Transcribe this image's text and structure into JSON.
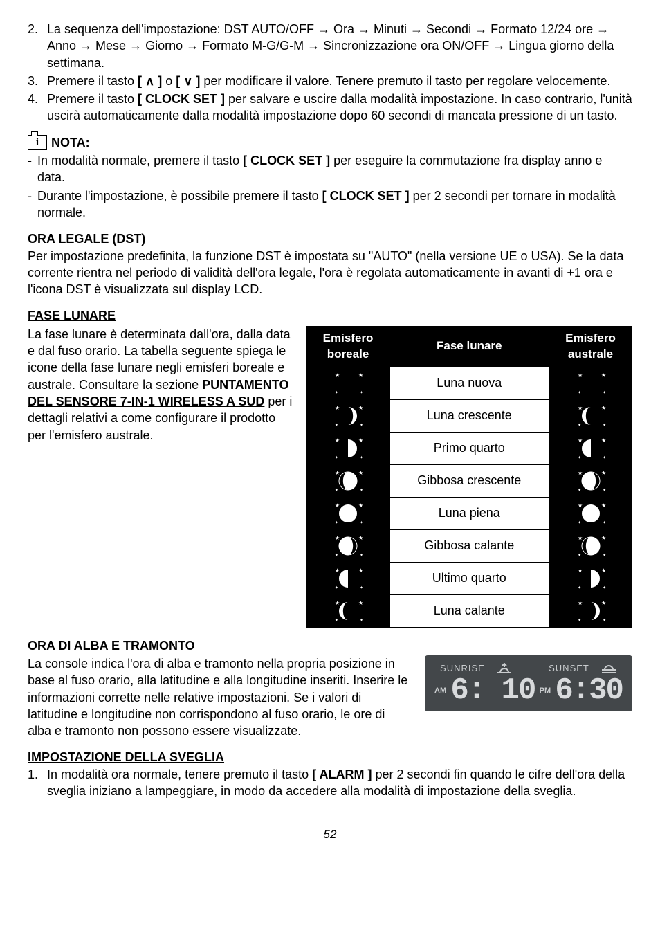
{
  "list_top": {
    "item2": "La sequenza dell'impostazione: DST AUTO/OFF → Ora → Minuti → Secondi → Formato 12/24 ore → Anno → Mese → Giorno → Formato M-G/G-M → Sincronizzazione ora ON/OFF → Lingua giorno della settimana.",
    "item3_a": "Premere il tasto ",
    "item3_b": " o ",
    "item3_c": " per modificare il valore. Tenere premuto il tasto per regolare velocemente.",
    "item3_up": "[ ∧ ]",
    "item3_dn": "[ ∨ ]",
    "item4_a": "Premere il tasto ",
    "item4_key": "[ CLOCK SET ]",
    "item4_b": " per salvare e uscire dalla modalità impostazione. In caso contrario, l'unità uscirà automaticamente dalla modalità impostazione dopo 60 secondi di mancata pressione di un tasto."
  },
  "nota_label": "NOTA:",
  "nota_i": "i",
  "nota_items": {
    "n1_a": "In modalità normale, premere il tasto ",
    "n1_key": "[ CLOCK SET ]",
    "n1_b": " per eseguire la commutazione fra display anno e data.",
    "n2_a": "Durante l'impostazione, è possibile premere il tasto ",
    "n2_key": "[ CLOCK SET ]",
    "n2_b": " per 2 secondi per tornare in modalità normale."
  },
  "dst_title": "ORA LEGALE (DST)",
  "dst_body": "Per impostazione predefinita, la funzione DST è impostata su \"AUTO\" (nella versione UE o USA). Se la data corrente rientra nel periodo di validità dell'ora legale, l'ora è regolata automaticamente in avanti di +1 ora e l'icona DST è visualizzata sul display LCD.",
  "moon_title": "FASE LUNARE",
  "moon_text_a": "La fase lunare è determinata dall'ora, dalla data e dal fuso orario. La tabella seguente spiega le icone della fase lunare negli emisferi boreale e australe. Consultare la sezione ",
  "moon_text_link": "PUNTAMENTO DEL SENSORE 7-IN-1 WIRELESS A SUD",
  "moon_text_b": " per i dettagli relativi a come configurare il prodotto per l'emisfero australe.",
  "moon_table": {
    "headers": {
      "north": "Emisfero boreale",
      "phase": "Fase lunare",
      "south": "Emisfero australe"
    },
    "rows": [
      {
        "label": "Luna nuova",
        "north_type": "new",
        "south_type": "new"
      },
      {
        "label": "Luna crescente",
        "north_type": "wxc",
        "south_type": "wnc_s"
      },
      {
        "label": "Primo quarto",
        "north_type": "fq",
        "south_type": "fq_s"
      },
      {
        "label": "Gibbosa crescente",
        "north_type": "wxg",
        "south_type": "wxg_s"
      },
      {
        "label": "Luna piena",
        "north_type": "full",
        "south_type": "full"
      },
      {
        "label": "Gibbosa calante",
        "north_type": "wng",
        "south_type": "wng_s"
      },
      {
        "label": "Ultimo quarto",
        "north_type": "lq",
        "south_type": "lq_s"
      },
      {
        "label": "Luna calante",
        "north_type": "wnc",
        "south_type": "wxc_s"
      }
    ]
  },
  "sunrise_title": "ORA DI ALBA E TRAMONTO",
  "sunrise_body": "La console indica l'ora di alba e tramonto nella propria posizione in base al fuso orario, alla latitudine e alla longitudine inseriti. Inserire le informazioni corrette nelle relative impostazioni. Se i valori di latitudine e longitudine non corrispondono al fuso orario, le ore di alba e tramonto non possono essere visualizzate.",
  "lcd": {
    "sunrise_label": "SUNRISE",
    "sunset_label": "SUNSET",
    "am": "AM",
    "pm": "PM",
    "sunrise_time": "6: 10",
    "sunset_time": "6:30"
  },
  "alarm_title": "IMPOSTAZIONE DELLA SVEGLIA",
  "alarm_item1_a": "In modalità ora normale, tenere premuto il tasto ",
  "alarm_item1_key": "[ ALARM ]",
  "alarm_item1_b": " per 2 secondi fin quando le cifre dell'ora della sveglia iniziano a lampeggiare, in modo da accedere alla modalità di impostazione della sveglia.",
  "page_num": "52",
  "colors": {
    "black": "#000000",
    "white": "#ffffff",
    "lcd_bg": "#43474a",
    "lcd_fg": "#d8dadc",
    "lcd_dim": "#9a9fa2"
  }
}
